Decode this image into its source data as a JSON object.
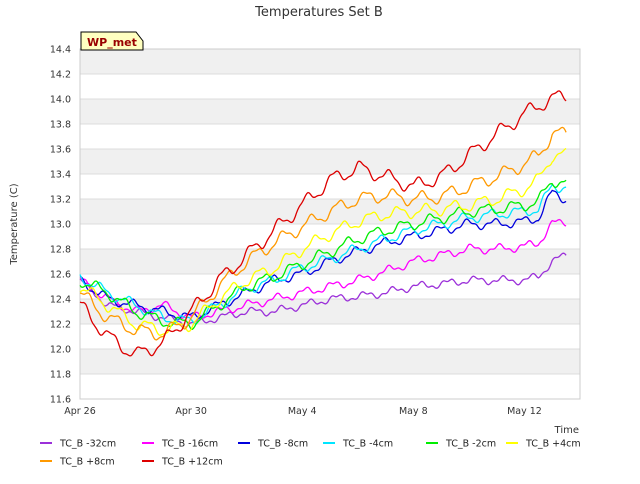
{
  "chart_data": {
    "type": "line",
    "title": "Temperatures Set B",
    "xlabel": "Time",
    "ylabel": "Temperature (C)",
    "ylim": [
      11.6,
      14.4
    ],
    "yticks": [
      11.6,
      11.8,
      12.0,
      12.2,
      12.4,
      12.6,
      12.8,
      13.0,
      13.2,
      13.4,
      13.6,
      13.8,
      14.0,
      14.2,
      14.4
    ],
    "ytick_labels": [
      "11.6",
      "11.8",
      "12.0",
      "12.2",
      "12.4",
      "12.6",
      "12.8",
      "13.0",
      "13.2",
      "13.4",
      "13.6",
      "13.8",
      "14.0",
      "14.2",
      "14.4"
    ],
    "xlim": [
      "2024-04-26",
      "2024-05-14"
    ],
    "xticks": [
      "2024-04-26",
      "2024-04-30",
      "2024-05-04",
      "2024-05-08",
      "2024-05-12"
    ],
    "xtick_labels": [
      "Apr 26",
      "Apr 30",
      "May 4",
      "May 8",
      "May 12"
    ],
    "grid": "horizontal-bands",
    "legend": "bottom",
    "annotation": "WP_met",
    "series": [
      {
        "name": "TC_B -32cm",
        "color": "#9b30d9",
        "x": [
          "2024-04-26",
          "2024-04-27",
          "2024-04-28",
          "2024-04-29",
          "2024-04-30",
          "2024-05-01",
          "2024-05-02",
          "2024-05-03",
          "2024-05-04",
          "2024-05-05",
          "2024-05-06",
          "2024-05-07",
          "2024-05-08",
          "2024-05-09",
          "2024-05-10",
          "2024-05-11",
          "2024-05-12",
          "2024-05-12.5",
          "2024-05-13",
          "2024-05-13.5"
        ],
        "y": [
          12.55,
          12.35,
          12.3,
          12.25,
          12.2,
          12.25,
          12.3,
          12.3,
          12.35,
          12.4,
          12.42,
          12.45,
          12.5,
          12.52,
          12.55,
          12.55,
          12.55,
          12.58,
          12.7,
          12.75
        ]
      },
      {
        "name": "TC_B -16cm",
        "color": "#ff00ff",
        "x": [
          "2024-04-26",
          "2024-04-27",
          "2024-04-28",
          "2024-04-29",
          "2024-04-30",
          "2024-05-01",
          "2024-05-02",
          "2024-05-03",
          "2024-05-04",
          "2024-05-05",
          "2024-05-06",
          "2024-05-07",
          "2024-05-08",
          "2024-05-09",
          "2024-05-10",
          "2024-05-11",
          "2024-05-12",
          "2024-05-12.5",
          "2024-05-13",
          "2024-05-13.5"
        ],
        "y": [
          12.55,
          12.4,
          12.3,
          12.35,
          12.25,
          12.3,
          12.35,
          12.4,
          12.45,
          12.5,
          12.55,
          12.62,
          12.7,
          12.75,
          12.8,
          12.8,
          12.82,
          12.85,
          13.0,
          13.02
        ]
      },
      {
        "name": "TC_B -8cm",
        "color": "#0000dd",
        "x": [
          "2024-04-26",
          "2024-04-27",
          "2024-04-28",
          "2024-04-29",
          "2024-04-30",
          "2024-05-01",
          "2024-05-02",
          "2024-05-03",
          "2024-05-04",
          "2024-05-05",
          "2024-05-06",
          "2024-05-07",
          "2024-05-08",
          "2024-05-09",
          "2024-05-10",
          "2024-05-11",
          "2024-05-12",
          "2024-05-12.5",
          "2024-05-13",
          "2024-05-13.5"
        ],
        "y": [
          12.55,
          12.4,
          12.35,
          12.3,
          12.25,
          12.35,
          12.45,
          12.55,
          12.6,
          12.7,
          12.78,
          12.85,
          12.9,
          12.95,
          13.0,
          13.0,
          13.02,
          13.05,
          13.25,
          13.2
        ]
      },
      {
        "name": "TC_B -4cm",
        "color": "#00e5ff",
        "x": [
          "2024-04-26",
          "2024-04-27",
          "2024-04-28",
          "2024-04-29",
          "2024-04-30",
          "2024-05-01",
          "2024-05-02",
          "2024-05-03",
          "2024-05-04",
          "2024-05-05",
          "2024-05-06",
          "2024-05-07",
          "2024-05-08",
          "2024-05-09",
          "2024-05-10",
          "2024-05-11",
          "2024-05-12",
          "2024-05-12.5",
          "2024-05-13",
          "2024-05-13.5"
        ],
        "y": [
          12.58,
          12.45,
          12.35,
          12.25,
          12.22,
          12.35,
          12.48,
          12.55,
          12.65,
          12.72,
          12.8,
          12.88,
          12.95,
          13.0,
          13.05,
          13.08,
          13.1,
          13.12,
          13.3,
          13.3
        ]
      },
      {
        "name": "TC_B -2cm",
        "color": "#00ee00",
        "x": [
          "2024-04-26",
          "2024-04-27",
          "2024-04-28",
          "2024-04-29",
          "2024-04-30",
          "2024-05-01",
          "2024-05-02",
          "2024-05-03",
          "2024-05-04",
          "2024-05-05",
          "2024-05-06",
          "2024-05-07",
          "2024-05-08",
          "2024-05-09",
          "2024-05-10",
          "2024-05-11",
          "2024-05-12",
          "2024-05-12.5",
          "2024-05-13",
          "2024-05-13.5"
        ],
        "y": [
          12.55,
          12.45,
          12.3,
          12.22,
          12.2,
          12.35,
          12.5,
          12.58,
          12.68,
          12.78,
          12.88,
          12.95,
          13.0,
          13.05,
          13.1,
          13.12,
          13.15,
          13.18,
          13.35,
          13.33
        ]
      },
      {
        "name": "TC_B +4cm",
        "color": "#ffff00",
        "x": [
          "2024-04-26",
          "2024-04-27",
          "2024-04-28",
          "2024-04-29",
          "2024-04-30",
          "2024-05-01",
          "2024-05-02",
          "2024-05-03",
          "2024-05-04",
          "2024-05-05",
          "2024-05-06",
          "2024-05-07",
          "2024-05-08",
          "2024-05-09",
          "2024-05-10",
          "2024-05-11",
          "2024-05-12",
          "2024-05-12.5",
          "2024-05-13",
          "2024-05-13.5"
        ],
        "y": [
          12.5,
          12.35,
          12.2,
          12.15,
          12.2,
          12.4,
          12.55,
          12.65,
          12.8,
          12.92,
          13.02,
          13.08,
          13.1,
          13.12,
          13.15,
          13.2,
          13.28,
          13.35,
          13.55,
          13.55
        ]
      },
      {
        "name": "TC_B +8cm",
        "color": "#ff9900",
        "x": [
          "2024-04-26",
          "2024-04-27",
          "2024-04-28",
          "2024-04-29",
          "2024-04-30",
          "2024-05-01",
          "2024-05-02",
          "2024-05-03",
          "2024-05-04",
          "2024-05-05",
          "2024-05-06",
          "2024-05-07",
          "2024-05-08",
          "2024-05-09",
          "2024-05-10",
          "2024-05-11",
          "2024-05-12",
          "2024-05-12.5",
          "2024-05-13",
          "2024-05-13.5"
        ],
        "y": [
          12.45,
          12.25,
          12.15,
          12.12,
          12.25,
          12.5,
          12.7,
          12.85,
          12.98,
          13.1,
          13.2,
          13.23,
          13.2,
          13.22,
          13.3,
          13.38,
          13.48,
          13.55,
          13.72,
          13.72
        ]
      },
      {
        "name": "TC_B +12cm",
        "color": "#dd0000",
        "x": [
          "2024-04-26",
          "2024-04-27",
          "2024-04-28",
          "2024-04-29",
          "2024-04-30",
          "2024-05-01",
          "2024-05-02",
          "2024-05-03",
          "2024-05-04",
          "2024-05-05",
          "2024-05-06",
          "2024-05-07",
          "2024-05-08",
          "2024-05-09",
          "2024-05-10",
          "2024-05-11",
          "2024-05-12",
          "2024-05-12.5",
          "2024-05-13",
          "2024-05-13.5"
        ],
        "y": [
          12.35,
          12.1,
          11.95,
          12.05,
          12.3,
          12.55,
          12.75,
          12.95,
          13.15,
          13.35,
          13.45,
          13.38,
          13.3,
          13.38,
          13.55,
          13.72,
          13.88,
          13.95,
          14.0,
          14.03
        ]
      }
    ]
  }
}
